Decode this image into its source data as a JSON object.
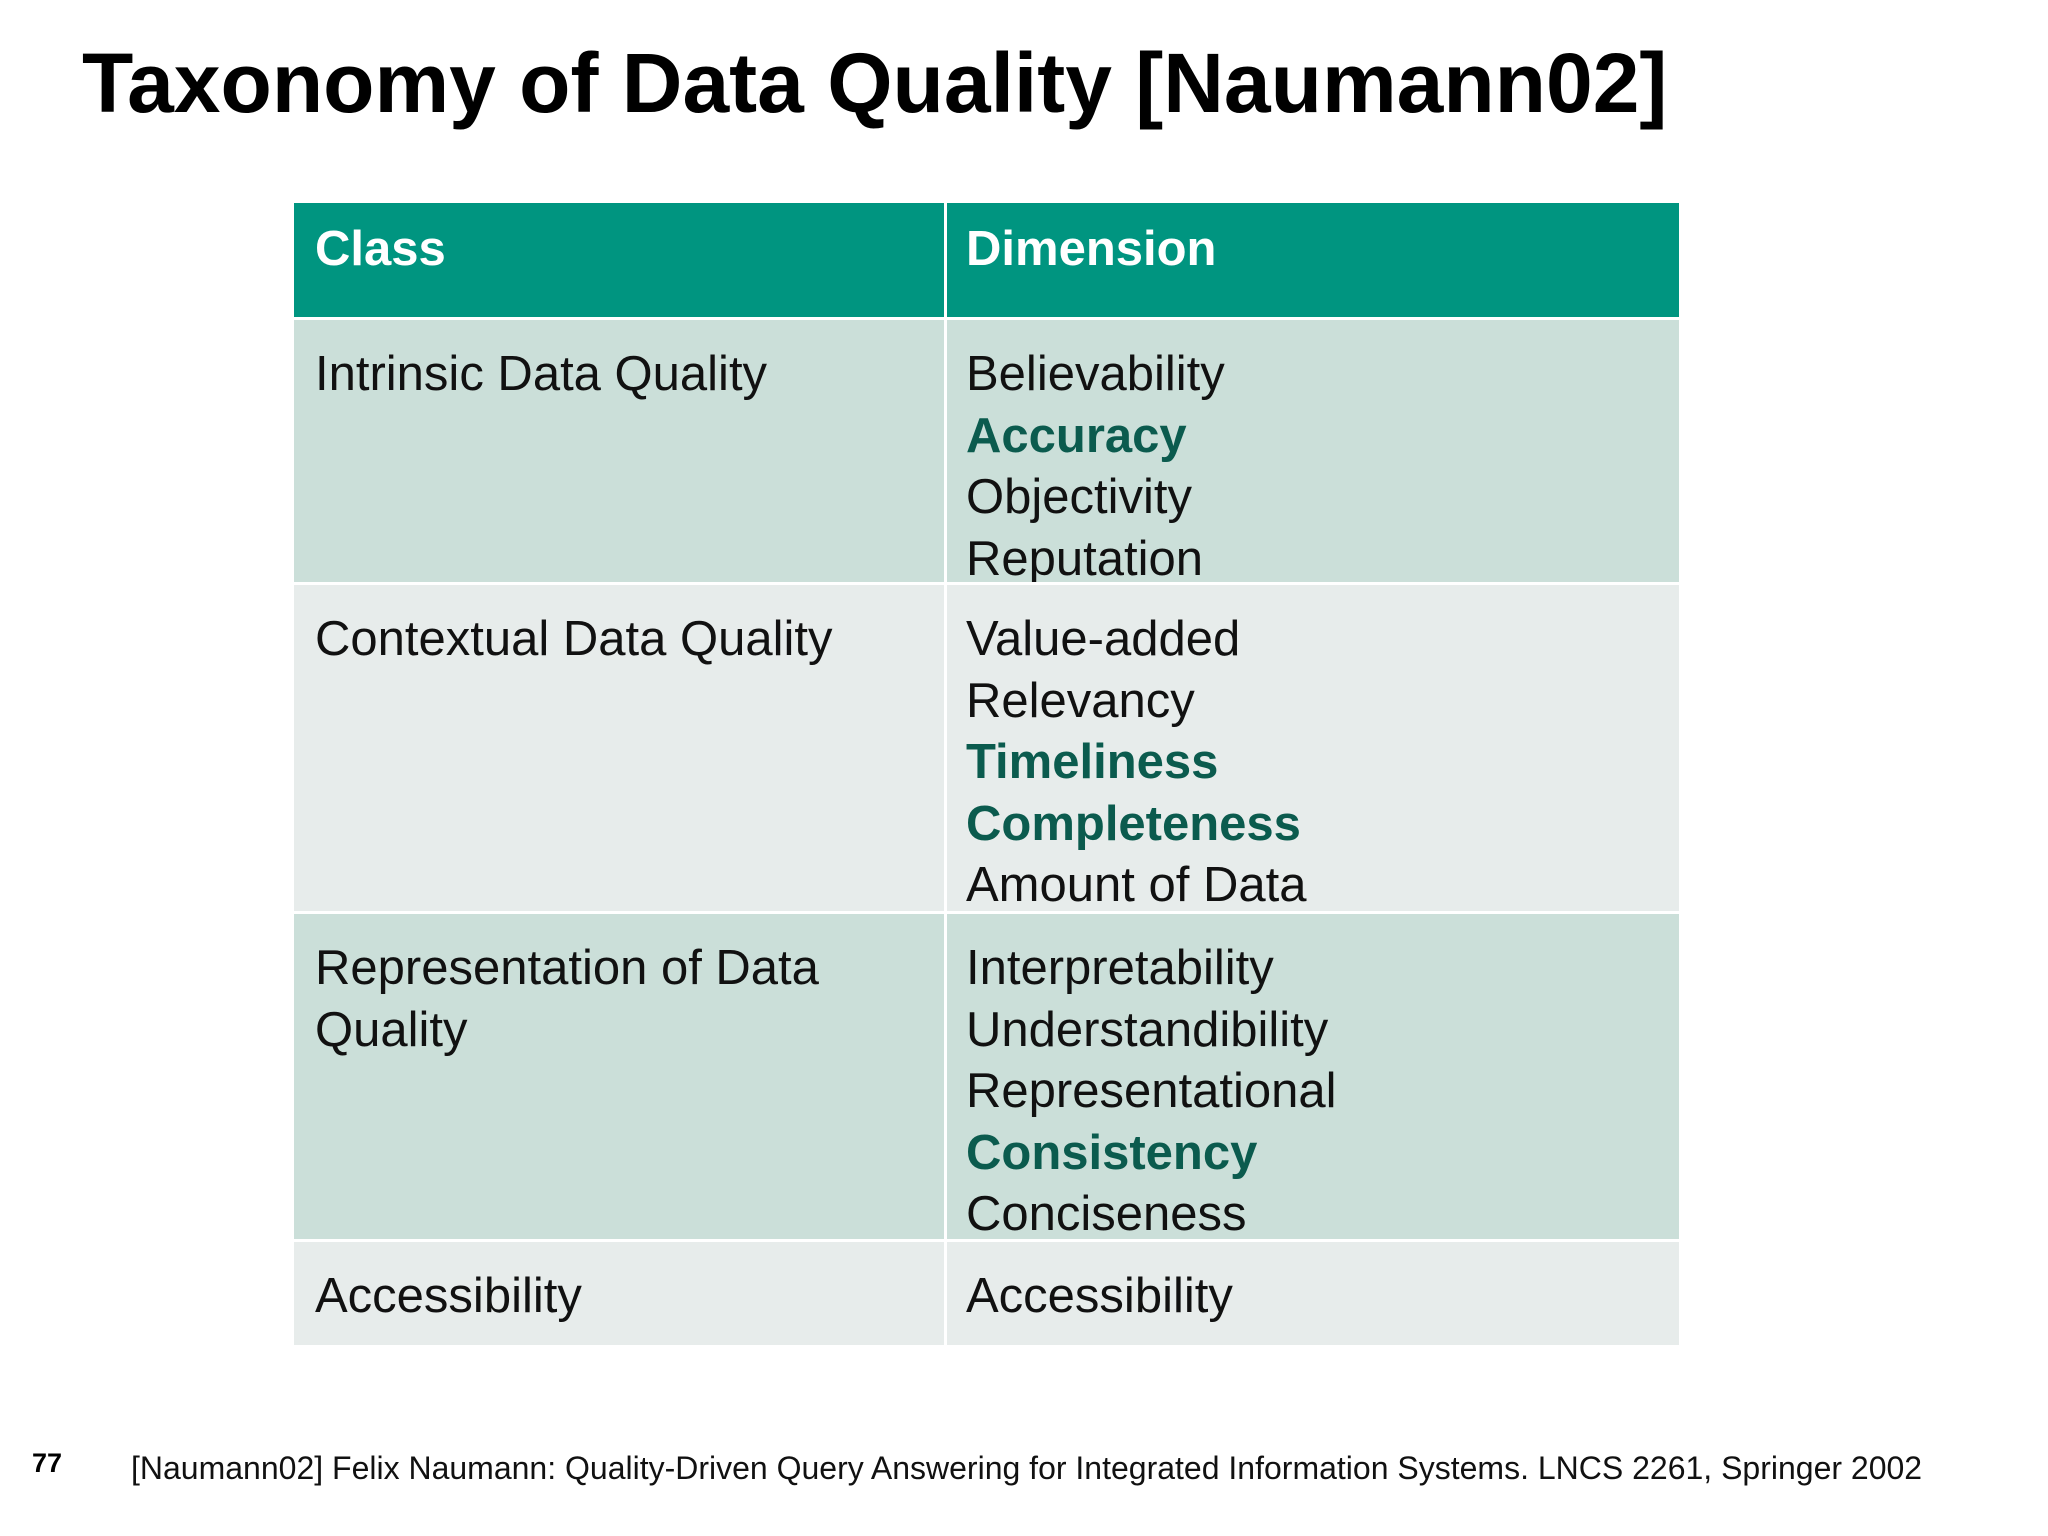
{
  "slide": {
    "title": "Taxonomy of Data Quality [Naumann02]",
    "page_number": "77",
    "citation": "[Naumann02] Felix Naumann: Quality-Driven Query Answering for Integrated Information Systems. LNCS 2261, Springer 2002"
  },
  "table": {
    "headers": [
      "Class",
      "Dimension"
    ],
    "rows": [
      {
        "class": "Intrinsic Data Quality",
        "dimensions": [
          {
            "text": "Believability",
            "highlight": false
          },
          {
            "text": "Accuracy",
            "highlight": true
          },
          {
            "text": "Objectivity",
            "highlight": false
          },
          {
            "text": "Reputation",
            "highlight": false
          }
        ]
      },
      {
        "class": "Contextual Data Quality",
        "dimensions": [
          {
            "text": "Value-added",
            "highlight": false
          },
          {
            "text": "Relevancy",
            "highlight": false
          },
          {
            "text": "Timeliness",
            "highlight": true
          },
          {
            "text": "Completeness",
            "highlight": true
          },
          {
            "text": "Amount of Data",
            "highlight": false
          }
        ]
      },
      {
        "class_lines": [
          "Representation of Data",
          "Quality"
        ],
        "dimensions": [
          {
            "text": "Interpretability",
            "highlight": false
          },
          {
            "text": "Understandibility",
            "highlight": false
          },
          {
            "text": "Representational",
            "highlight": false
          },
          {
            "text": "Consistency",
            "highlight": true
          },
          {
            "text": "Conciseness",
            "highlight": false
          }
        ]
      },
      {
        "class": "Accessibility",
        "dimensions": [
          {
            "text": "Accessibility",
            "highlight": false
          }
        ]
      }
    ]
  },
  "colors": {
    "header_bg": "#009580",
    "header_text": "#ffffff",
    "band_dark": "#cbdfd9",
    "band_light": "#e7eceb",
    "highlight_text": "#0b5b4e",
    "body_text": "#111111"
  }
}
